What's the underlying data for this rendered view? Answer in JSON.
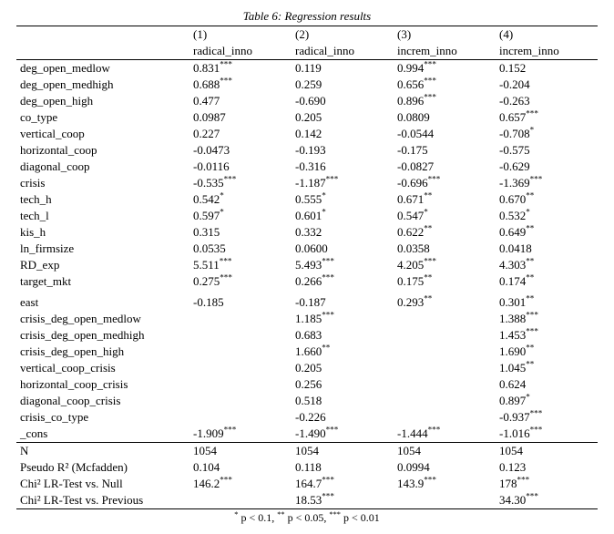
{
  "title": "Table 6: Regression results",
  "col_nums": [
    "(1)",
    "(2)",
    "(3)",
    "(4)"
  ],
  "col_names": [
    "radical_inno",
    "radical_inno",
    "increm_inno",
    "increm_inno"
  ],
  "rows": [
    {
      "label": "deg_open_medlow",
      "c": [
        [
          "0.831",
          "***"
        ],
        [
          "0.119",
          ""
        ],
        [
          "0.994",
          "***"
        ],
        [
          "0.152",
          ""
        ]
      ]
    },
    {
      "label": "deg_open_medhigh",
      "c": [
        [
          "0.688",
          "***"
        ],
        [
          "0.259",
          ""
        ],
        [
          "0.656",
          "***"
        ],
        [
          "-0.204",
          ""
        ]
      ]
    },
    {
      "label": "deg_open_high",
      "c": [
        [
          "0.477",
          ""
        ],
        [
          "-0.690",
          ""
        ],
        [
          "0.896",
          "***"
        ],
        [
          "-0.263",
          ""
        ]
      ]
    },
    {
      "label": "co_type",
      "c": [
        [
          "0.0987",
          ""
        ],
        [
          "0.205",
          ""
        ],
        [
          "0.0809",
          ""
        ],
        [
          "0.657",
          "***"
        ]
      ]
    },
    {
      "label": "vertical_coop",
      "c": [
        [
          "0.227",
          ""
        ],
        [
          "0.142",
          ""
        ],
        [
          "-0.0544",
          ""
        ],
        [
          "-0.708",
          "*"
        ]
      ]
    },
    {
      "label": "horizontal_coop",
      "c": [
        [
          "-0.0473",
          ""
        ],
        [
          "-0.193",
          ""
        ],
        [
          "-0.175",
          ""
        ],
        [
          "-0.575",
          ""
        ]
      ]
    },
    {
      "label": "diagonal_coop",
      "c": [
        [
          "-0.0116",
          ""
        ],
        [
          "-0.316",
          ""
        ],
        [
          "-0.0827",
          ""
        ],
        [
          "-0.629",
          ""
        ]
      ]
    },
    {
      "label": "crisis",
      "c": [
        [
          "-0.535",
          "***"
        ],
        [
          "-1.187",
          "***"
        ],
        [
          "-0.696",
          "***"
        ],
        [
          "-1.369",
          "***"
        ]
      ]
    },
    {
      "label": "tech_h",
      "c": [
        [
          "0.542",
          "*"
        ],
        [
          "0.555",
          "*"
        ],
        [
          "0.671",
          "**"
        ],
        [
          "0.670",
          "**"
        ]
      ]
    },
    {
      "label": "tech_l",
      "c": [
        [
          "0.597",
          "*"
        ],
        [
          "0.601",
          "*"
        ],
        [
          "0.547",
          "*"
        ],
        [
          "0.532",
          "*"
        ]
      ]
    },
    {
      "label": "kis_h",
      "c": [
        [
          "0.315",
          ""
        ],
        [
          "0.332",
          ""
        ],
        [
          "0.622",
          "**"
        ],
        [
          "0.649",
          "**"
        ]
      ]
    },
    {
      "label": "ln_firmsize",
      "c": [
        [
          "0.0535",
          ""
        ],
        [
          "0.0600",
          ""
        ],
        [
          "0.0358",
          ""
        ],
        [
          "0.0418",
          ""
        ]
      ]
    },
    {
      "label": "RD_exp",
      "c": [
        [
          "5.511",
          "***"
        ],
        [
          "5.493",
          "***"
        ],
        [
          "4.205",
          "***"
        ],
        [
          "4.303",
          "**"
        ]
      ]
    },
    {
      "label": "target_mkt",
      "c": [
        [
          "0.275",
          "***"
        ],
        [
          "0.266",
          "***"
        ],
        [
          "0.175",
          "**"
        ],
        [
          "0.174",
          "**"
        ]
      ]
    },
    {
      "label": "east",
      "c": [
        [
          "-0.185",
          ""
        ],
        [
          "-0.187",
          ""
        ],
        [
          "0.293",
          "**"
        ],
        [
          "0.301",
          "**"
        ]
      ],
      "gap": true
    },
    {
      "label": "crisis_deg_open_medlow",
      "c": [
        [
          "",
          ""
        ],
        [
          "1.185",
          "***"
        ],
        [
          "",
          ""
        ],
        [
          "1.388",
          "***"
        ]
      ]
    },
    {
      "label": "crisis_deg_open_medhigh",
      "c": [
        [
          "",
          ""
        ],
        [
          "0.683",
          ""
        ],
        [
          "",
          ""
        ],
        [
          "1.453",
          "***"
        ]
      ]
    },
    {
      "label": "crisis_deg_open_high",
      "c": [
        [
          "",
          ""
        ],
        [
          "1.660",
          "**"
        ],
        [
          "",
          ""
        ],
        [
          "1.690",
          "**"
        ]
      ]
    },
    {
      "label": "vertical_coop_crisis",
      "c": [
        [
          "",
          ""
        ],
        [
          "0.205",
          ""
        ],
        [
          "",
          ""
        ],
        [
          "1.045",
          "**"
        ]
      ]
    },
    {
      "label": "horizontal_coop_crisis",
      "c": [
        [
          "",
          ""
        ],
        [
          "0.256",
          ""
        ],
        [
          "",
          ""
        ],
        [
          "0.624",
          ""
        ]
      ]
    },
    {
      "label": "diagonal_coop_crisis",
      "c": [
        [
          "",
          ""
        ],
        [
          "0.518",
          ""
        ],
        [
          "",
          ""
        ],
        [
          "0.897",
          "*"
        ]
      ]
    },
    {
      "label": "crisis_co_type",
      "c": [
        [
          "",
          ""
        ],
        [
          "-0.226",
          ""
        ],
        [
          "",
          ""
        ],
        [
          "-0.937",
          "***"
        ]
      ]
    },
    {
      "label": "_cons",
      "c": [
        [
          "-1.909",
          "***"
        ],
        [
          "-1.490",
          "***"
        ],
        [
          "-1.444",
          "***"
        ],
        [
          "-1.016",
          "***"
        ]
      ]
    }
  ],
  "stats": [
    {
      "label": "N",
      "c": [
        [
          "1054",
          ""
        ],
        [
          "1054",
          ""
        ],
        [
          "1054",
          ""
        ],
        [
          "1054",
          ""
        ]
      ]
    },
    {
      "label": "Pseudo R² (Mcfadden)",
      "c": [
        [
          "0.104",
          ""
        ],
        [
          "0.118",
          ""
        ],
        [
          "0.0994",
          ""
        ],
        [
          "0.123",
          ""
        ]
      ]
    },
    {
      "label": "Chi² LR-Test vs. Null",
      "c": [
        [
          "146.2",
          "***"
        ],
        [
          "164.7",
          "***"
        ],
        [
          "143.9",
          "***"
        ],
        [
          "178",
          "***"
        ]
      ]
    },
    {
      "label": "Chi² LR-Test vs. Previous",
      "c": [
        [
          "",
          ""
        ],
        [
          "18.53",
          "***"
        ],
        [
          "",
          ""
        ],
        [
          "34.30",
          "***"
        ]
      ]
    }
  ],
  "footer_parts": [
    "*",
    " p < 0.1, ",
    "**",
    " p < 0.05, ",
    "***",
    " p < 0.01"
  ]
}
